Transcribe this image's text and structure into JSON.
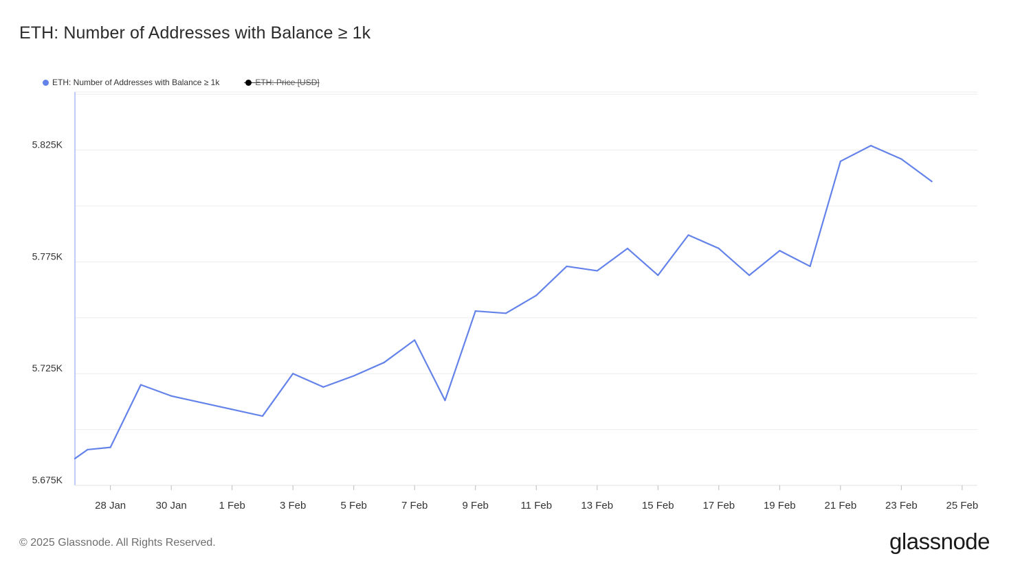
{
  "page": {
    "title": "ETH: Number of Addresses with Balance ≥ 1k",
    "footer": "© 2025 Glassnode. All Rights Reserved.",
    "brand": "glassnode"
  },
  "legend": [
    {
      "label": "ETH: Number of Addresses with Balance ≥ 1k",
      "color": "#6382ea",
      "active": true
    },
    {
      "label": "ETH: Price [USD]",
      "color": "#000000",
      "active": false
    }
  ],
  "chart_data": {
    "type": "line",
    "title": "ETH: Number of Addresses with Balance ≥ 1k",
    "xlabel": "",
    "ylabel": "",
    "x_ticks": [
      "28 Jan",
      "30 Jan",
      "1 Feb",
      "3 Feb",
      "5 Feb",
      "7 Feb",
      "9 Feb",
      "11 Feb",
      "13 Feb",
      "15 Feb",
      "17 Feb",
      "19 Feb",
      "21 Feb",
      "23 Feb",
      "25 Feb"
    ],
    "x_tick_dates": [
      "2025-01-28",
      "2025-01-30",
      "2025-02-01",
      "2025-02-03",
      "2025-02-05",
      "2025-02-07",
      "2025-02-09",
      "2025-02-11",
      "2025-02-13",
      "2025-02-15",
      "2025-02-17",
      "2025-02-19",
      "2025-02-21",
      "2025-02-23",
      "2025-02-25"
    ],
    "y_ticks": [
      "5.675K",
      "5.725K",
      "5.775K",
      "5.825K"
    ],
    "y_tick_values": [
      5675,
      5725,
      5775,
      5825
    ],
    "xlim": [
      "2025-01-26T20:00",
      "2025-02-25T12:00"
    ],
    "ylim": [
      5675,
      5851
    ],
    "grid": true,
    "legend_position": "top-left",
    "series": [
      {
        "name": "ETH: Number of Addresses with Balance ≥ 1k",
        "color": "#6382ea",
        "points": [
          {
            "x": "2025-01-26T20:00",
            "y": 5687
          },
          {
            "x": "2025-01-27T06:00",
            "y": 5691
          },
          {
            "x": "2025-01-28",
            "y": 5692
          },
          {
            "x": "2025-01-29",
            "y": 5720
          },
          {
            "x": "2025-01-30",
            "y": 5715
          },
          {
            "x": "2025-01-31",
            "y": 5712
          },
          {
            "x": "2025-02-01",
            "y": 5709
          },
          {
            "x": "2025-02-02",
            "y": 5706
          },
          {
            "x": "2025-02-03",
            "y": 5725
          },
          {
            "x": "2025-02-04",
            "y": 5719
          },
          {
            "x": "2025-02-05",
            "y": 5724
          },
          {
            "x": "2025-02-06",
            "y": 5730
          },
          {
            "x": "2025-02-07",
            "y": 5740
          },
          {
            "x": "2025-02-08",
            "y": 5713
          },
          {
            "x": "2025-02-09",
            "y": 5753
          },
          {
            "x": "2025-02-10",
            "y": 5752
          },
          {
            "x": "2025-02-11",
            "y": 5760
          },
          {
            "x": "2025-02-12",
            "y": 5773
          },
          {
            "x": "2025-02-13",
            "y": 5771
          },
          {
            "x": "2025-02-14",
            "y": 5781
          },
          {
            "x": "2025-02-15",
            "y": 5769
          },
          {
            "x": "2025-02-16",
            "y": 5787
          },
          {
            "x": "2025-02-17",
            "y": 5781
          },
          {
            "x": "2025-02-18",
            "y": 5769
          },
          {
            "x": "2025-02-19",
            "y": 5780
          },
          {
            "x": "2025-02-20",
            "y": 5773
          },
          {
            "x": "2025-02-21",
            "y": 5820
          },
          {
            "x": "2025-02-22",
            "y": 5827
          },
          {
            "x": "2025-02-23",
            "y": 5821
          },
          {
            "x": "2025-02-24",
            "y": 5811
          }
        ]
      }
    ]
  }
}
